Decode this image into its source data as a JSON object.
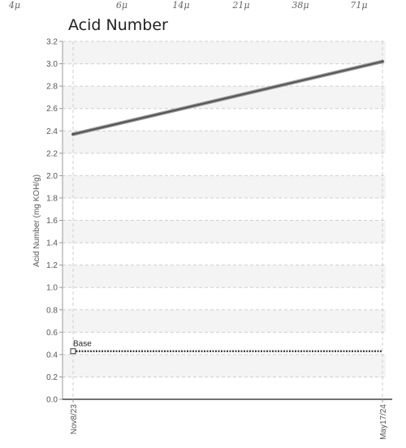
{
  "chart_data": {
    "type": "line",
    "title": "Acid Number",
    "ylabel": "Acid Number (mg KOH/g)",
    "xlabel": "",
    "ylim": [
      0,
      3.2
    ],
    "yticks": [
      "0.0",
      "0.2",
      "0.4",
      "0.6",
      "0.8",
      "1.0",
      "1.2",
      "1.4",
      "1.6",
      "1.8",
      "2.0",
      "2.2",
      "2.4",
      "2.6",
      "2.8",
      "3.0",
      "3.2"
    ],
    "categories": [
      "Nov8/23",
      "May17/24"
    ],
    "series": [
      {
        "values": [
          2.37,
          3.02
        ],
        "color": "#555555"
      }
    ],
    "baseline": {
      "label": "Base",
      "value": 0.43,
      "color": "#444444"
    },
    "top_axis_ticks": [
      "4μ",
      "6μ",
      "14μ",
      "21μ",
      "38μ",
      "71μ"
    ],
    "grid": true,
    "legend": "none"
  }
}
